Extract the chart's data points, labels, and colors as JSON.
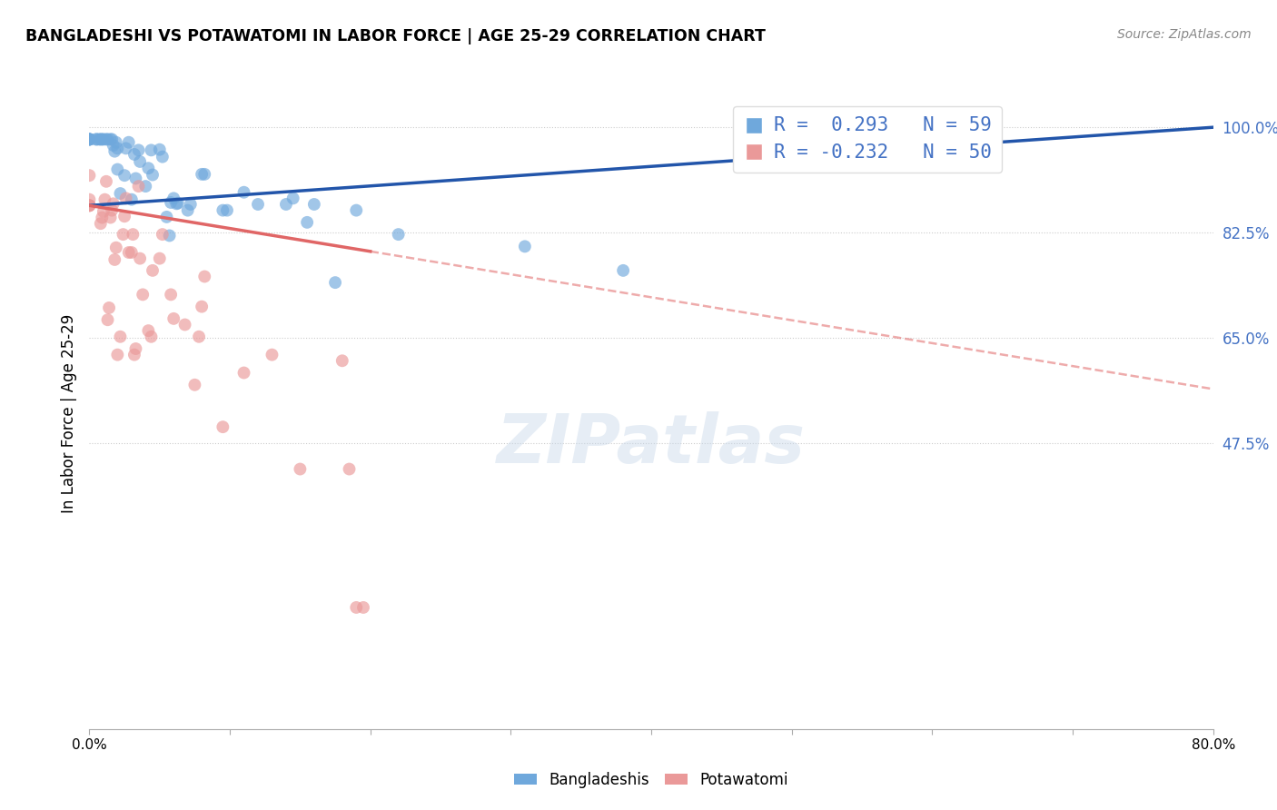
{
  "title": "BANGLADESHI VS POTAWATOMI IN LABOR FORCE | AGE 25-29 CORRELATION CHART",
  "source": "Source: ZipAtlas.com",
  "ylabel": "In Labor Force | Age 25-29",
  "watermark": "ZIPatlas",
  "legend_bangladeshi": "R =  0.293   N = 59",
  "legend_potawatomi": "R = -0.232   N = 50",
  "bangladeshi_color": "#6fa8dc",
  "potawatomi_color": "#ea9999",
  "regression_bangladeshi_color": "#2255aa",
  "regression_potawatomi_color": "#e06666",
  "bangladeshi_points": [
    [
      0.0,
      0.98
    ],
    [
      0.0,
      0.98
    ],
    [
      0.0,
      0.98
    ],
    [
      0.0,
      0.98
    ],
    [
      0.0,
      0.98
    ],
    [
      0.005,
      0.98
    ],
    [
      0.005,
      0.98
    ],
    [
      0.007,
      0.98
    ],
    [
      0.008,
      0.98
    ],
    [
      0.009,
      0.98
    ],
    [
      0.01,
      0.98
    ],
    [
      0.012,
      0.98
    ],
    [
      0.013,
      0.98
    ],
    [
      0.015,
      0.98
    ],
    [
      0.016,
      0.98
    ],
    [
      0.017,
      0.97
    ],
    [
      0.018,
      0.96
    ],
    [
      0.019,
      0.975
    ],
    [
      0.02,
      0.965
    ],
    [
      0.02,
      0.93
    ],
    [
      0.022,
      0.89
    ],
    [
      0.025,
      0.92
    ],
    [
      0.026,
      0.965
    ],
    [
      0.028,
      0.975
    ],
    [
      0.03,
      0.88
    ],
    [
      0.032,
      0.955
    ],
    [
      0.033,
      0.915
    ],
    [
      0.035,
      0.962
    ],
    [
      0.036,
      0.943
    ],
    [
      0.04,
      0.902
    ],
    [
      0.042,
      0.932
    ],
    [
      0.044,
      0.962
    ],
    [
      0.045,
      0.921
    ],
    [
      0.05,
      0.963
    ],
    [
      0.052,
      0.951
    ],
    [
      0.055,
      0.851
    ],
    [
      0.057,
      0.82
    ],
    [
      0.058,
      0.875
    ],
    [
      0.06,
      0.882
    ],
    [
      0.062,
      0.873
    ],
    [
      0.063,
      0.874
    ],
    [
      0.07,
      0.862
    ],
    [
      0.072,
      0.872
    ],
    [
      0.08,
      0.922
    ],
    [
      0.082,
      0.922
    ],
    [
      0.095,
      0.862
    ],
    [
      0.098,
      0.862
    ],
    [
      0.11,
      0.892
    ],
    [
      0.12,
      0.872
    ],
    [
      0.14,
      0.872
    ],
    [
      0.145,
      0.882
    ],
    [
      0.155,
      0.842
    ],
    [
      0.16,
      0.872
    ],
    [
      0.175,
      0.742
    ],
    [
      0.19,
      0.862
    ],
    [
      0.22,
      0.822
    ],
    [
      0.31,
      0.802
    ],
    [
      0.38,
      0.762
    ],
    [
      0.545,
      1.0
    ]
  ],
  "potawatomi_points": [
    [
      0.0,
      0.87
    ],
    [
      0.0,
      0.87
    ],
    [
      0.0,
      0.87
    ],
    [
      0.0,
      0.88
    ],
    [
      0.0,
      0.92
    ],
    [
      0.008,
      0.84
    ],
    [
      0.009,
      0.85
    ],
    [
      0.01,
      0.86
    ],
    [
      0.011,
      0.88
    ],
    [
      0.012,
      0.91
    ],
    [
      0.013,
      0.68
    ],
    [
      0.014,
      0.7
    ],
    [
      0.015,
      0.85
    ],
    [
      0.016,
      0.862
    ],
    [
      0.017,
      0.873
    ],
    [
      0.018,
      0.78
    ],
    [
      0.019,
      0.8
    ],
    [
      0.02,
      0.622
    ],
    [
      0.022,
      0.652
    ],
    [
      0.024,
      0.822
    ],
    [
      0.025,
      0.852
    ],
    [
      0.026,
      0.882
    ],
    [
      0.028,
      0.792
    ],
    [
      0.03,
      0.792
    ],
    [
      0.031,
      0.822
    ],
    [
      0.032,
      0.622
    ],
    [
      0.033,
      0.632
    ],
    [
      0.035,
      0.902
    ],
    [
      0.036,
      0.782
    ],
    [
      0.038,
      0.722
    ],
    [
      0.042,
      0.662
    ],
    [
      0.044,
      0.652
    ],
    [
      0.045,
      0.762
    ],
    [
      0.05,
      0.782
    ],
    [
      0.052,
      0.822
    ],
    [
      0.058,
      0.722
    ],
    [
      0.06,
      0.682
    ],
    [
      0.068,
      0.672
    ],
    [
      0.075,
      0.572
    ],
    [
      0.078,
      0.652
    ],
    [
      0.08,
      0.702
    ],
    [
      0.082,
      0.752
    ],
    [
      0.095,
      0.502
    ],
    [
      0.11,
      0.592
    ],
    [
      0.13,
      0.622
    ],
    [
      0.15,
      0.432
    ],
    [
      0.18,
      0.612
    ],
    [
      0.185,
      0.432
    ],
    [
      0.19,
      0.202
    ],
    [
      0.195,
      0.202
    ]
  ],
  "xlim": [
    0.0,
    0.8
  ],
  "ylim": [
    0.0,
    1.05
  ],
  "ytick_values": [
    1.0,
    0.825,
    0.65,
    0.475
  ],
  "ytick_labels": [
    "100.0%",
    "82.5%",
    "65.0%",
    "47.5%"
  ],
  "regression_b_x0": 0.0,
  "regression_b_y0": 0.87,
  "regression_b_x1": 0.8,
  "regression_b_y1": 1.0,
  "regression_p_x0": 0.0,
  "regression_p_y0": 0.87,
  "regression_p_x1": 0.8,
  "regression_p_y1": 0.565,
  "regression_p_solid_end": 0.2
}
